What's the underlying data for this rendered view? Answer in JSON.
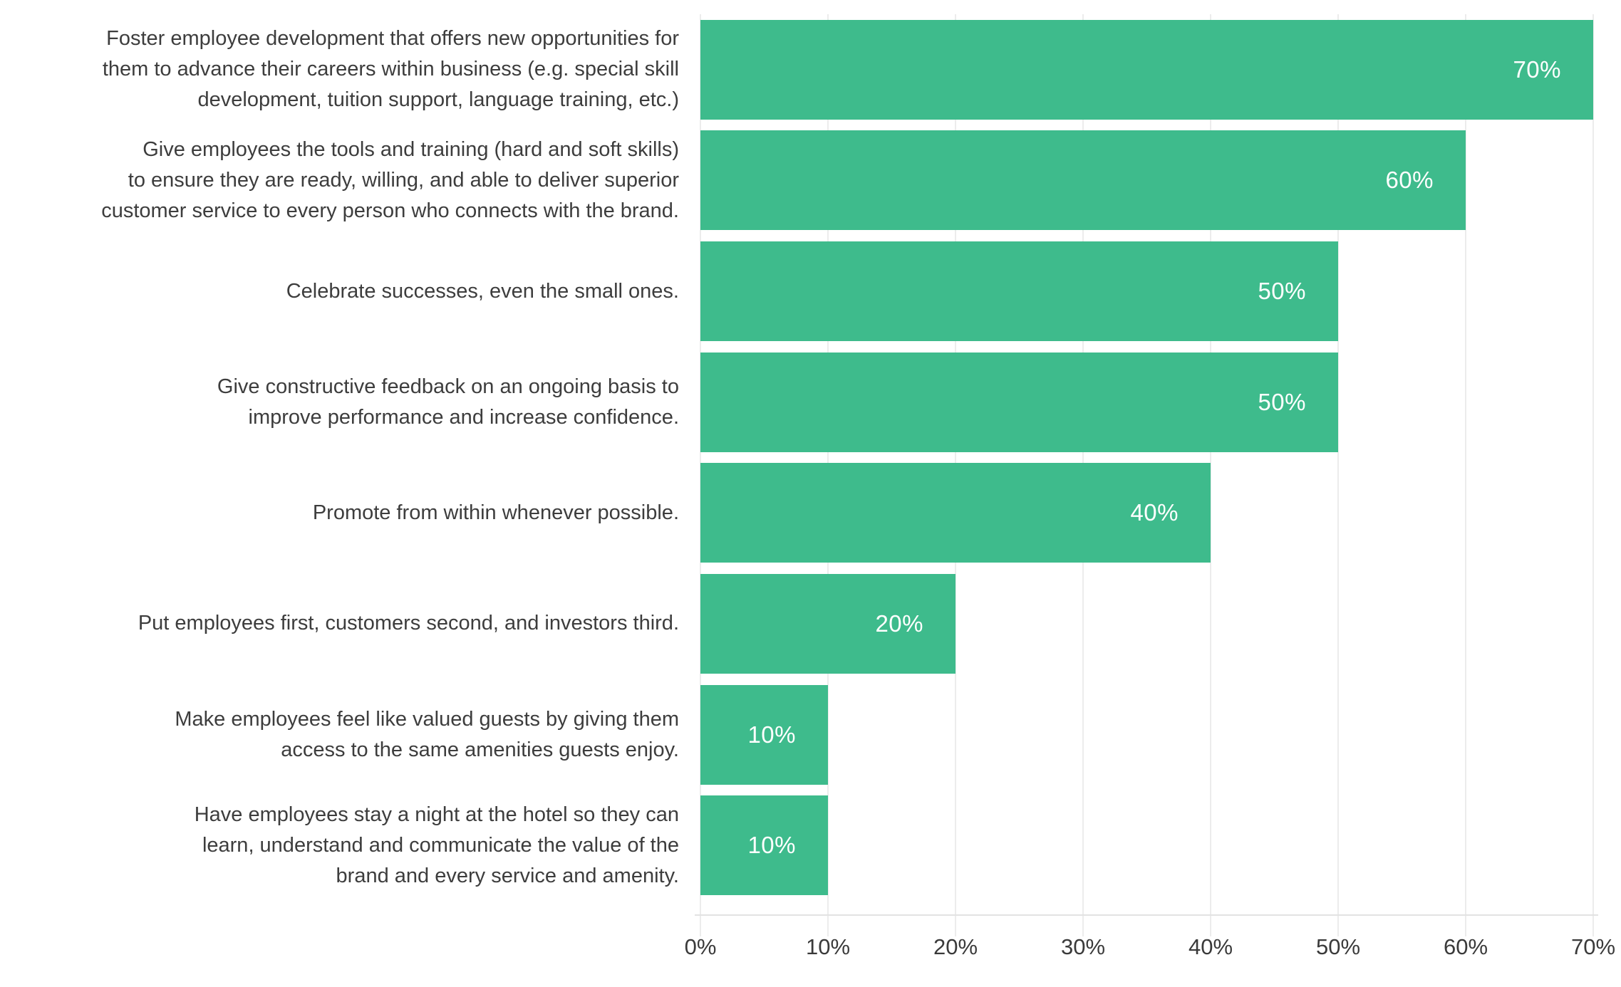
{
  "chart_data": {
    "type": "bar",
    "orientation": "horizontal",
    "title": "",
    "xlabel": "",
    "ylabel": "",
    "xlim": [
      0,
      70
    ],
    "grid": "vertical",
    "legend": "none",
    "bar_color": "#3ebb8c",
    "value_label_color": "#ffffff",
    "text_color": "#3d3d3d",
    "gridline_color": "#ececec",
    "x_ticks": [
      "0%",
      "10%",
      "20%",
      "30%",
      "40%",
      "50%",
      "60%",
      "70%"
    ],
    "categories": [
      "Foster employee development that offers new opportunities for\nthem to advance their careers within business (e.g. special skill\ndevelopment, tuition support, language training, etc.)",
      "Give employees the tools and training (hard and soft skills)\nto ensure they are ready, willing, and able to deliver superior\ncustomer service to every person who connects with the brand.",
      "Celebrate successes, even the small ones.",
      "Give constructive feedback on an ongoing basis to\nimprove performance and increase confidence.",
      "Promote from within whenever possible.",
      "Put employees first, customers second, and investors third.",
      "Make employees feel like valued guests by giving them\naccess to the same amenities guests enjoy.",
      "Have employees stay a night at the hotel so they can\nlearn, understand and communicate the value of the\nbrand and every service and amenity."
    ],
    "values": [
      70,
      60,
      50,
      50,
      40,
      20,
      10,
      10
    ],
    "value_labels": [
      "70%",
      "60%",
      "50%",
      "50%",
      "40%",
      "20%",
      "10%",
      "10%"
    ]
  }
}
